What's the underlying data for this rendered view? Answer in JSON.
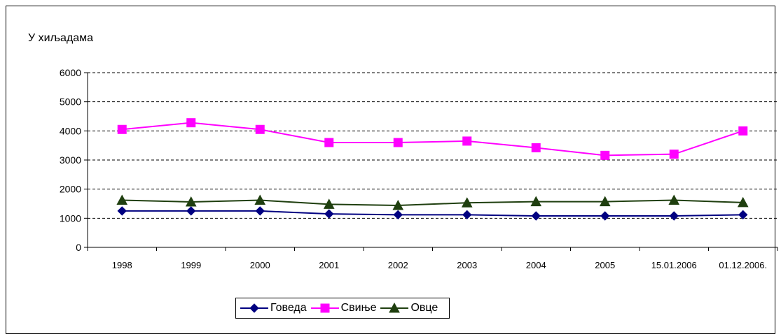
{
  "chart_data": {
    "type": "line",
    "title": "",
    "ylabel": "У хиљадама",
    "xlabel": "",
    "ylim": [
      0,
      6000
    ],
    "yticks": [
      0,
      1000,
      2000,
      3000,
      4000,
      5000,
      6000
    ],
    "grid": "horizontal dashed",
    "legend_position": "bottom",
    "categories": [
      "1998",
      "1999",
      "2000",
      "2001",
      "2002",
      "2003",
      "2004",
      "2005",
      "15.01.2006",
      "01.12.2006."
    ],
    "series": [
      {
        "name": "Говеда",
        "color": "#000080",
        "marker": "diamond",
        "values": [
          1250,
          1250,
          1250,
          1150,
          1120,
          1120,
          1080,
          1080,
          1080,
          1120
        ]
      },
      {
        "name": "Свиње",
        "color": "#FF00FF",
        "marker": "square",
        "values": [
          4050,
          4280,
          4050,
          3600,
          3600,
          3650,
          3420,
          3160,
          3200,
          4000
        ]
      },
      {
        "name": "Овце",
        "color": "#1F3F0F",
        "marker": "triangle",
        "values": [
          1620,
          1560,
          1620,
          1480,
          1440,
          1530,
          1570,
          1570,
          1620,
          1540
        ]
      }
    ]
  }
}
